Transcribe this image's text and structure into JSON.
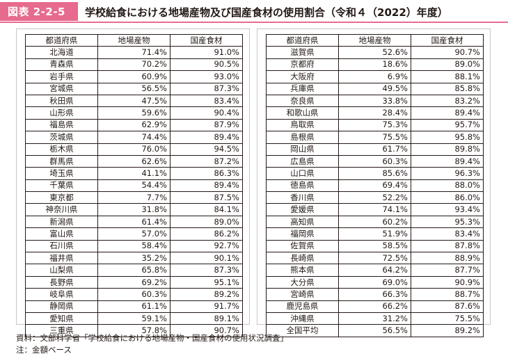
{
  "figure": {
    "badge": "図表 2-2-5",
    "title": "学校給食における地場産物及び国産食材の使用割合（令和４（2022）年度）"
  },
  "columns": [
    "都道府県",
    "地場産物",
    "国産食材"
  ],
  "left_rows": [
    {
      "pref": "北海道",
      "local": "71.4%",
      "domestic": "91.0%"
    },
    {
      "pref": "青森県",
      "local": "70.2%",
      "domestic": "90.5%"
    },
    {
      "pref": "岩手県",
      "local": "60.9%",
      "domestic": "93.0%"
    },
    {
      "pref": "宮城県",
      "local": "56.5%",
      "domestic": "87.3%"
    },
    {
      "pref": "秋田県",
      "local": "47.5%",
      "domestic": "83.4%"
    },
    {
      "pref": "山形県",
      "local": "59.6%",
      "domestic": "90.4%"
    },
    {
      "pref": "福島県",
      "local": "62.9%",
      "domestic": "87.9%"
    },
    {
      "pref": "茨城県",
      "local": "74.4%",
      "domestic": "89.4%"
    },
    {
      "pref": "栃木県",
      "local": "76.0%",
      "domestic": "94.5%"
    },
    {
      "pref": "群馬県",
      "local": "62.6%",
      "domestic": "87.2%"
    },
    {
      "pref": "埼玉県",
      "local": "41.1%",
      "domestic": "86.3%"
    },
    {
      "pref": "千葉県",
      "local": "54.4%",
      "domestic": "89.4%"
    },
    {
      "pref": "東京都",
      "local": "7.7%",
      "domestic": "87.5%"
    },
    {
      "pref": "神奈川県",
      "local": "31.8%",
      "domestic": "84.1%"
    },
    {
      "pref": "新潟県",
      "local": "61.4%",
      "domestic": "89.0%"
    },
    {
      "pref": "富山県",
      "local": "57.0%",
      "domestic": "86.2%"
    },
    {
      "pref": "石川県",
      "local": "58.4%",
      "domestic": "92.7%"
    },
    {
      "pref": "福井県",
      "local": "35.2%",
      "domestic": "90.1%"
    },
    {
      "pref": "山梨県",
      "local": "65.8%",
      "domestic": "87.3%"
    },
    {
      "pref": "長野県",
      "local": "69.2%",
      "domestic": "95.1%"
    },
    {
      "pref": "岐阜県",
      "local": "60.3%",
      "domestic": "89.2%"
    },
    {
      "pref": "静岡県",
      "local": "61.1%",
      "domestic": "91.7%"
    },
    {
      "pref": "愛知県",
      "local": "59.1%",
      "domestic": "89.1%"
    },
    {
      "pref": "三重県",
      "local": "57.8%",
      "domestic": "90.7%"
    }
  ],
  "right_rows": [
    {
      "pref": "滋賀県",
      "local": "52.6%",
      "domestic": "90.7%"
    },
    {
      "pref": "京都府",
      "local": "18.6%",
      "domestic": "89.0%"
    },
    {
      "pref": "大阪府",
      "local": "6.9%",
      "domestic": "88.1%"
    },
    {
      "pref": "兵庫県",
      "local": "49.5%",
      "domestic": "85.8%"
    },
    {
      "pref": "奈良県",
      "local": "33.8%",
      "domestic": "83.2%"
    },
    {
      "pref": "和歌山県",
      "local": "28.4%",
      "domestic": "89.4%"
    },
    {
      "pref": "鳥取県",
      "local": "75.3%",
      "domestic": "95.7%"
    },
    {
      "pref": "島根県",
      "local": "75.5%",
      "domestic": "95.8%"
    },
    {
      "pref": "岡山県",
      "local": "61.7%",
      "domestic": "89.8%"
    },
    {
      "pref": "広島県",
      "local": "60.3%",
      "domestic": "89.4%"
    },
    {
      "pref": "山口県",
      "local": "85.6%",
      "domestic": "96.3%"
    },
    {
      "pref": "徳島県",
      "local": "69.4%",
      "domestic": "88.0%"
    },
    {
      "pref": "香川県",
      "local": "52.2%",
      "domestic": "86.0%"
    },
    {
      "pref": "愛媛県",
      "local": "74.1%",
      "domestic": "93.4%"
    },
    {
      "pref": "高知県",
      "local": "60.2%",
      "domestic": "95.3%"
    },
    {
      "pref": "福岡県",
      "local": "51.9%",
      "domestic": "83.4%"
    },
    {
      "pref": "佐賀県",
      "local": "58.5%",
      "domestic": "87.8%"
    },
    {
      "pref": "長崎県",
      "local": "72.5%",
      "domestic": "88.9%"
    },
    {
      "pref": "熊本県",
      "local": "64.2%",
      "domestic": "87.7%"
    },
    {
      "pref": "大分県",
      "local": "69.0%",
      "domestic": "90.9%"
    },
    {
      "pref": "宮崎県",
      "local": "66.3%",
      "domestic": "88.7%"
    },
    {
      "pref": "鹿児島県",
      "local": "66.2%",
      "domestic": "87.6%"
    },
    {
      "pref": "沖縄県",
      "local": "31.2%",
      "domestic": "75.5%"
    },
    {
      "pref": "全国平均",
      "local": "56.5%",
      "domestic": "89.2%"
    }
  ],
  "notes": {
    "source": "資料：文部科学省「学校給食における地場産物・国産食材の使用状況調査」",
    "note": "注：金額ベース"
  },
  "colors": {
    "accent": "#e66b8e",
    "text": "#231815",
    "panel_border": "#c8c6c6"
  }
}
